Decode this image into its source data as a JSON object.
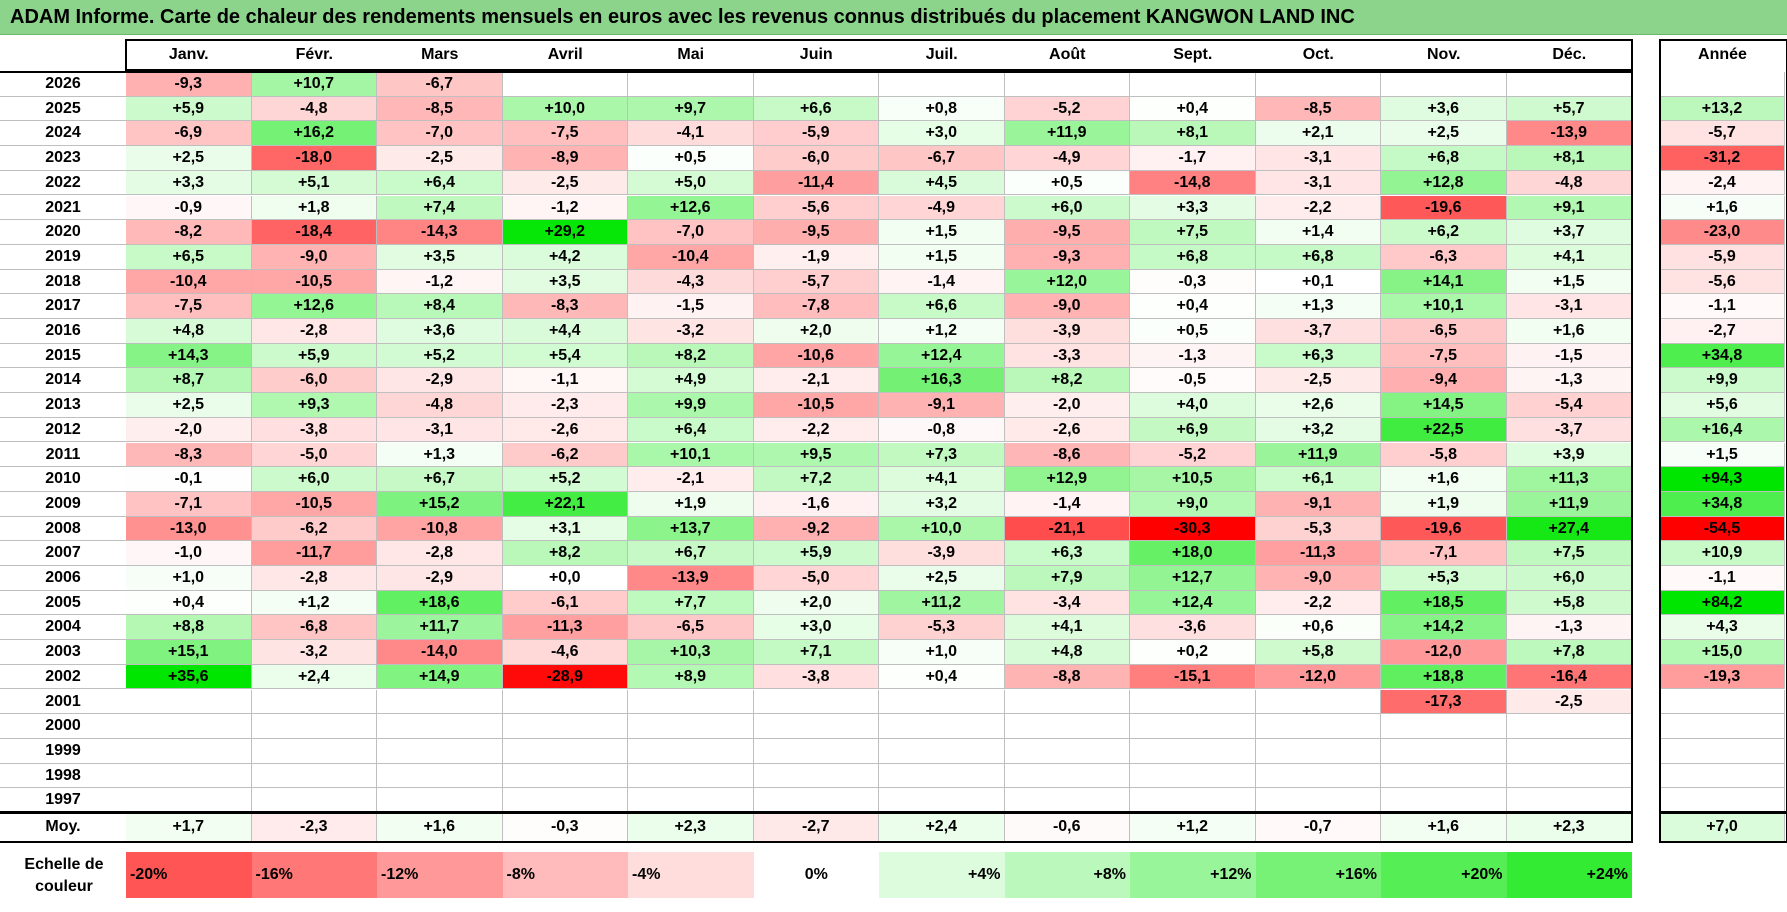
{
  "title": "ADAM Informe. Carte de chaleur des rendements mensuels en euros avec les revenus connus distribués du placement KANGWON LAND INC",
  "chart_data": {
    "type": "heatmap",
    "title": "ADAM Informe. Carte de chaleur des rendements mensuels en euros avec les revenus connus distribués du placement KANGWON LAND INC",
    "months": [
      "Janv.",
      "Févr.",
      "Mars",
      "Avril",
      "Mai",
      "Juin",
      "Juil.",
      "Août",
      "Sept.",
      "Oct.",
      "Nov.",
      "Déc."
    ],
    "year_header": "Année",
    "rows": [
      {
        "year": "2026",
        "values": [
          "-9,3",
          "+10,7",
          "-6,7",
          "",
          "",
          "",
          "",
          "",
          "",
          "",
          "",
          ""
        ],
        "annual": ""
      },
      {
        "year": "2025",
        "values": [
          "+5,9",
          "-4,8",
          "-8,5",
          "+10,0",
          "+9,7",
          "+6,6",
          "+0,8",
          "-5,2",
          "+0,4",
          "-8,5",
          "+3,6",
          "+5,7"
        ],
        "annual": "+13,2"
      },
      {
        "year": "2024",
        "values": [
          "-6,9",
          "+16,2",
          "-7,0",
          "-7,5",
          "-4,1",
          "-5,9",
          "+3,0",
          "+11,9",
          "+8,1",
          "+2,1",
          "+2,5",
          "-13,9"
        ],
        "annual": "-5,7"
      },
      {
        "year": "2023",
        "values": [
          "+2,5",
          "-18,0",
          "-2,5",
          "-8,9",
          "+0,5",
          "-6,0",
          "-6,7",
          "-4,9",
          "-1,7",
          "-3,1",
          "+6,8",
          "+8,1"
        ],
        "annual": "-31,2"
      },
      {
        "year": "2022",
        "values": [
          "+3,3",
          "+5,1",
          "+6,4",
          "-2,5",
          "+5,0",
          "-11,4",
          "+4,5",
          "+0,5",
          "-14,8",
          "-3,1",
          "+12,8",
          "-4,8"
        ],
        "annual": "-2,4"
      },
      {
        "year": "2021",
        "values": [
          "-0,9",
          "+1,8",
          "+7,4",
          "-1,2",
          "+12,6",
          "-5,6",
          "-4,9",
          "+6,0",
          "+3,3",
          "-2,2",
          "-19,6",
          "+9,1"
        ],
        "annual": "+1,6"
      },
      {
        "year": "2020",
        "values": [
          "-8,2",
          "-18,4",
          "-14,3",
          "+29,2",
          "-7,0",
          "-9,5",
          "+1,5",
          "-9,5",
          "+7,5",
          "+1,4",
          "+6,2",
          "+3,7"
        ],
        "annual": "-23,0"
      },
      {
        "year": "2019",
        "values": [
          "+6,5",
          "-9,0",
          "+3,5",
          "+4,2",
          "-10,4",
          "-1,9",
          "+1,5",
          "-9,3",
          "+6,8",
          "+6,8",
          "-6,3",
          "+4,1"
        ],
        "annual": "-5,9"
      },
      {
        "year": "2018",
        "values": [
          "-10,4",
          "-10,5",
          "-1,2",
          "+3,5",
          "-4,3",
          "-5,7",
          "-1,4",
          "+12,0",
          "-0,3",
          "+0,1",
          "+14,1",
          "+1,5"
        ],
        "annual": "-5,6"
      },
      {
        "year": "2017",
        "values": [
          "-7,5",
          "+12,6",
          "+8,4",
          "-8,3",
          "-1,5",
          "-7,8",
          "+6,6",
          "-9,0",
          "+0,4",
          "+1,3",
          "+10,1",
          "-3,1"
        ],
        "annual": "-1,1"
      },
      {
        "year": "2016",
        "values": [
          "+4,8",
          "-2,8",
          "+3,6",
          "+4,4",
          "-3,2",
          "+2,0",
          "+1,2",
          "-3,9",
          "+0,5",
          "-3,7",
          "-6,5",
          "+1,6"
        ],
        "annual": "-2,7"
      },
      {
        "year": "2015",
        "values": [
          "+14,3",
          "+5,9",
          "+5,2",
          "+5,4",
          "+8,2",
          "-10,6",
          "+12,4",
          "-3,3",
          "-1,3",
          "+6,3",
          "-7,5",
          "-1,5"
        ],
        "annual": "+34,8"
      },
      {
        "year": "2014",
        "values": [
          "+8,7",
          "-6,0",
          "-2,9",
          "-1,1",
          "+4,9",
          "-2,1",
          "+16,3",
          "+8,2",
          "-0,5",
          "-2,5",
          "-9,4",
          "-1,3"
        ],
        "annual": "+9,9"
      },
      {
        "year": "2013",
        "values": [
          "+2,5",
          "+9,3",
          "-4,8",
          "-2,3",
          "+9,9",
          "-10,5",
          "-9,1",
          "-2,0",
          "+4,0",
          "+2,6",
          "+14,5",
          "-5,4"
        ],
        "annual": "+5,6"
      },
      {
        "year": "2012",
        "values": [
          "-2,0",
          "-3,8",
          "-3,1",
          "-2,6",
          "+6,4",
          "-2,2",
          "-0,8",
          "-2,6",
          "+6,9",
          "+3,2",
          "+22,5",
          "-3,7"
        ],
        "annual": "+16,4"
      },
      {
        "year": "2011",
        "values": [
          "-8,3",
          "-5,0",
          "+1,3",
          "-6,2",
          "+10,1",
          "+9,5",
          "+7,3",
          "-8,6",
          "-5,2",
          "+11,9",
          "-5,8",
          "+3,9"
        ],
        "annual": "+1,5"
      },
      {
        "year": "2010",
        "values": [
          "-0,1",
          "+6,0",
          "+6,7",
          "+5,2",
          "-2,1",
          "+7,2",
          "+4,1",
          "+12,9",
          "+10,5",
          "+6,1",
          "+1,6",
          "+11,3"
        ],
        "annual": "+94,3"
      },
      {
        "year": "2009",
        "values": [
          "-7,1",
          "-10,5",
          "+15,2",
          "+22,1",
          "+1,9",
          "-1,6",
          "+3,2",
          "-1,4",
          "+9,0",
          "-9,1",
          "+1,9",
          "+11,9"
        ],
        "annual": "+34,8"
      },
      {
        "year": "2008",
        "values": [
          "-13,0",
          "-6,2",
          "-10,8",
          "+3,1",
          "+13,7",
          "-9,2",
          "+10,0",
          "-21,1",
          "-30,3",
          "-5,3",
          "-19,6",
          "+27,4"
        ],
        "annual": "-54,5"
      },
      {
        "year": "2007",
        "values": [
          "-1,0",
          "-11,7",
          "-2,8",
          "+8,2",
          "+6,7",
          "+5,9",
          "-3,9",
          "+6,3",
          "+18,0",
          "-11,3",
          "-7,1",
          "+7,5"
        ],
        "annual": "+10,9"
      },
      {
        "year": "2006",
        "values": [
          "+1,0",
          "-2,8",
          "-2,9",
          "+0,0",
          "-13,9",
          "-5,0",
          "+2,5",
          "+7,9",
          "+12,7",
          "-9,0",
          "+5,3",
          "+6,0"
        ],
        "annual": "-1,1"
      },
      {
        "year": "2005",
        "values": [
          "+0,4",
          "+1,2",
          "+18,6",
          "-6,1",
          "+7,7",
          "+2,0",
          "+11,2",
          "-3,4",
          "+12,4",
          "-2,2",
          "+18,5",
          "+5,8"
        ],
        "annual": "+84,2"
      },
      {
        "year": "2004",
        "values": [
          "+8,8",
          "-6,8",
          "+11,7",
          "-11,3",
          "-6,5",
          "+3,0",
          "-5,3",
          "+4,1",
          "-3,6",
          "+0,6",
          "+14,2",
          "-1,3"
        ],
        "annual": "+4,3"
      },
      {
        "year": "2003",
        "values": [
          "+15,1",
          "-3,2",
          "-14,0",
          "-4,6",
          "+10,3",
          "+7,1",
          "+1,0",
          "+4,8",
          "+0,2",
          "+5,8",
          "-12,0",
          "+7,8"
        ],
        "annual": "+15,0"
      },
      {
        "year": "2002",
        "values": [
          "+35,6",
          "+2,4",
          "+14,9",
          "-28,9",
          "+8,9",
          "-3,8",
          "+0,4",
          "-8,8",
          "-15,1",
          "-12,0",
          "+18,8",
          "-16,4"
        ],
        "annual": "-19,3"
      },
      {
        "year": "2001",
        "values": [
          "",
          "",
          "",
          "",
          "",
          "",
          "",
          "",
          "",
          "",
          "-17,3",
          "-2,5"
        ],
        "annual": ""
      },
      {
        "year": "2000",
        "values": [
          "",
          "",
          "",
          "",
          "",
          "",
          "",
          "",
          "",
          "",
          "",
          ""
        ],
        "annual": ""
      },
      {
        "year": "1999",
        "values": [
          "",
          "",
          "",
          "",
          "",
          "",
          "",
          "",
          "",
          "",
          "",
          ""
        ],
        "annual": ""
      },
      {
        "year": "1998",
        "values": [
          "",
          "",
          "",
          "",
          "",
          "",
          "",
          "",
          "",
          "",
          "",
          ""
        ],
        "annual": ""
      },
      {
        "year": "1997",
        "values": [
          "",
          "",
          "",
          "",
          "",
          "",
          "",
          "",
          "",
          "",
          "",
          ""
        ],
        "annual": ""
      }
    ],
    "average": {
      "label": "Moy.",
      "values": [
        "+1,7",
        "-2,3",
        "+1,6",
        "-0,3",
        "+2,3",
        "-2,7",
        "+2,4",
        "-0,6",
        "+1,2",
        "-0,7",
        "+1,6",
        "+2,3"
      ],
      "annual": "+7,0"
    },
    "scale": {
      "label": "Echelle de couleur",
      "steps": [
        "-20%",
        "-16%",
        "-12%",
        "-8%",
        "-4%",
        "0%",
        "+4%",
        "+8%",
        "+12%",
        "+16%",
        "+20%",
        "+24%"
      ],
      "step_values": [
        -20,
        -16,
        -12,
        -8,
        -4,
        0,
        4,
        8,
        12,
        16,
        20,
        24
      ]
    },
    "colors": {
      "negative": "#ff0000",
      "neutral": "#ffffff",
      "positive": "#00e600"
    }
  }
}
